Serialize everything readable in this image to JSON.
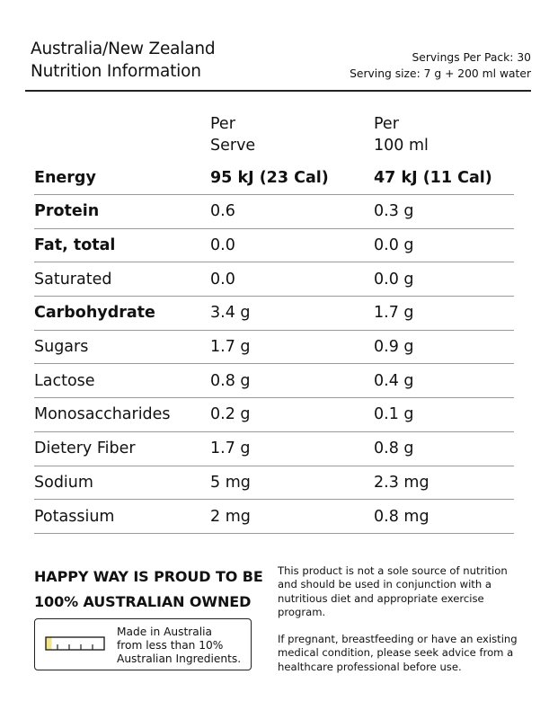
{
  "header": {
    "title_line1": "Australia/New Zealand",
    "title_line2": "Nutrition Information",
    "servings_per_pack": "Servings Per Pack: 30",
    "serving_size": "Serving size: 7 g + 200 ml water"
  },
  "table": {
    "headers": {
      "per_serve_line1": "Per",
      "per_serve_line2": "Serve",
      "per_100_line1": "Per",
      "per_100_line2": "100 ml"
    },
    "rows": [
      {
        "name": "Energy",
        "per_serve": "95 kJ (23 Cal)",
        "per_100": "47 kJ (11 Cal)"
      },
      {
        "name": "Protein",
        "per_serve": "0.6",
        "per_100": "0.3 g"
      },
      {
        "name": "Fat, total",
        "per_serve": "0.0",
        "per_100": "0.0 g"
      },
      {
        "name": "Saturated",
        "per_serve": "0.0",
        "per_100": "0.0 g"
      },
      {
        "name": "Carbohydrate",
        "per_serve": "3.4 g",
        "per_100": "1.7 g"
      },
      {
        "name": "Sugars",
        "per_serve": "1.7 g",
        "per_100": "0.9 g"
      },
      {
        "name": "Lactose",
        "per_serve": "0.8 g",
        "per_100": "0.4 g"
      },
      {
        "name": "Monosaccharides",
        "per_serve": "0.2 g",
        "per_100": "0.1 g"
      },
      {
        "name": "Dietery Fiber",
        "per_serve": "1.7 g",
        "per_100": "0.8 g"
      },
      {
        "name": "Sodium",
        "per_serve": "5 mg",
        "per_100": "2.3 mg"
      },
      {
        "name": "Potassium",
        "per_serve": "2 mg",
        "per_100": "0.8 mg"
      }
    ]
  },
  "footer": {
    "proud_line1": "HAPPY WAY IS PROUD TO BE",
    "proud_line2": "100% AUSTRALIAN OWNED",
    "badge": {
      "line1": "Made in Australia",
      "line2": "from less than 10%",
      "line3": "Australian Ingredients.",
      "icon": "australian-content-gauge-icon",
      "fill_fraction": 0.1,
      "fill_color": "#f3e48a"
    },
    "note1": "This product is not a sole source of nutrition and should be used in conjunction with a nutritious diet and appropriate exercise program.",
    "note2": "If pregnant, breastfeeding or have an existing medical condition, please seek advice from a healthcare professional before use."
  }
}
